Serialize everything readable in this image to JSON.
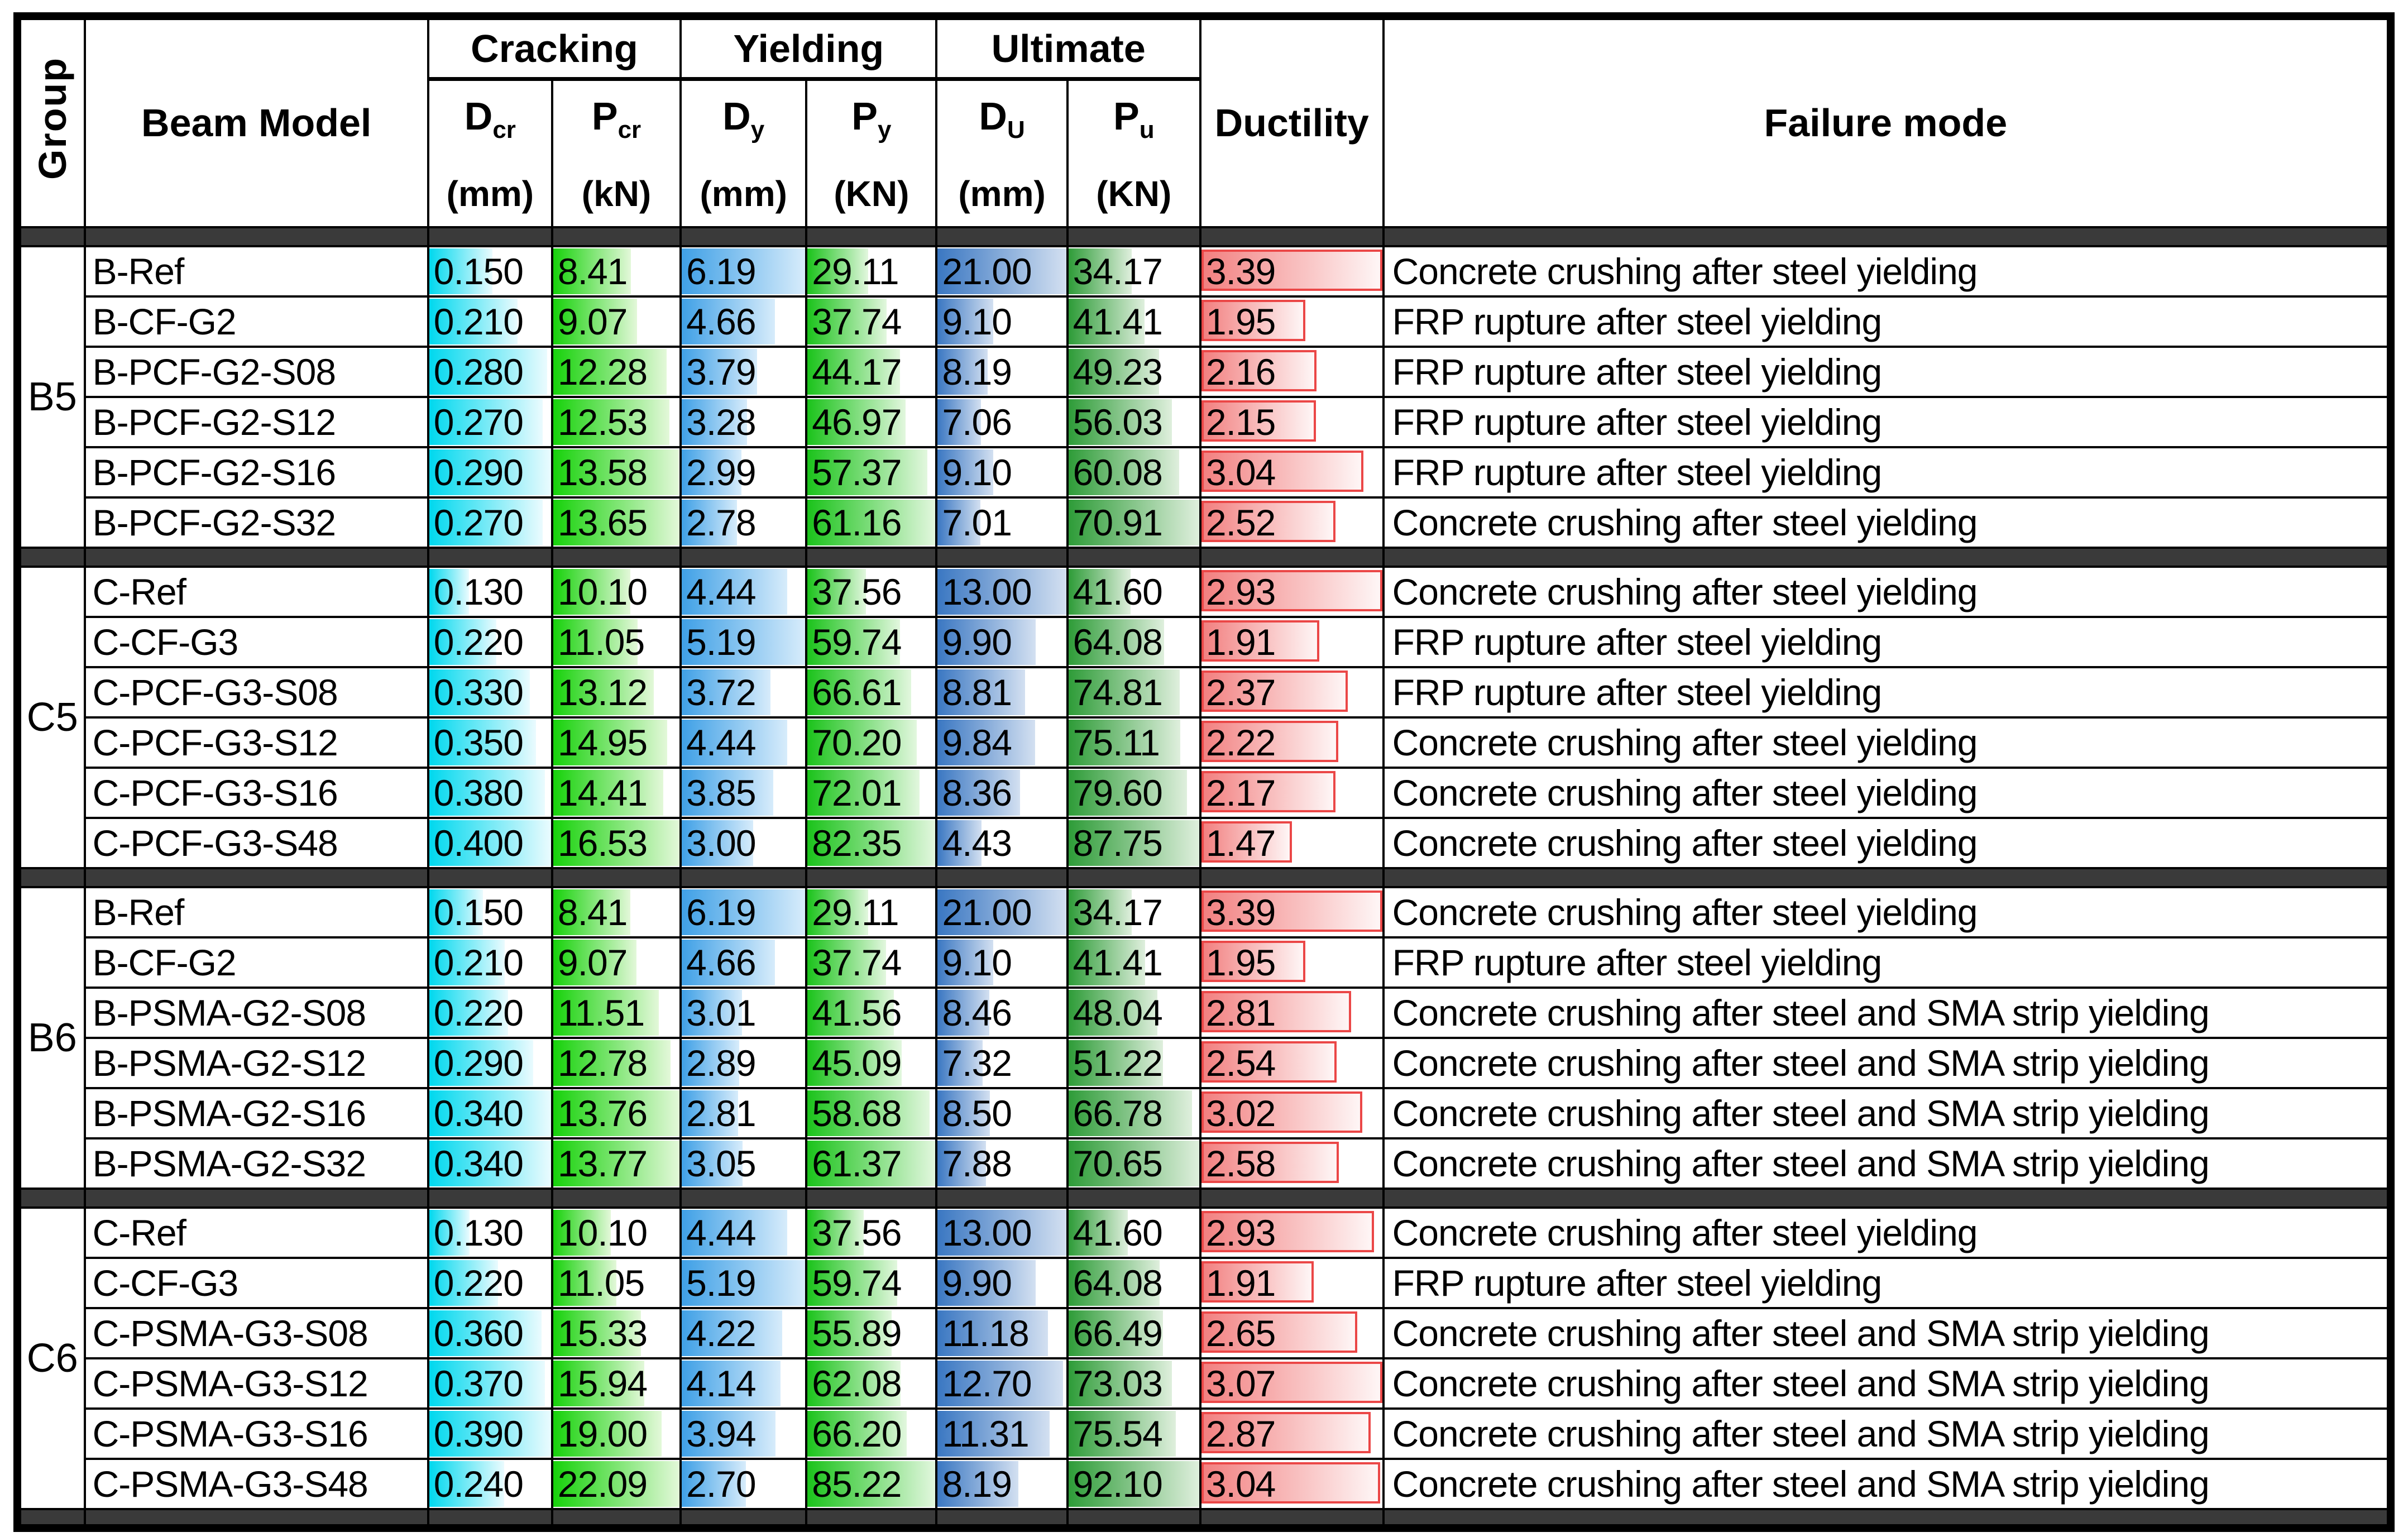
{
  "header": {
    "group": "Group",
    "beam_model": "Beam Model",
    "spans": [
      {
        "label": "Cracking"
      },
      {
        "label": "Yielding"
      },
      {
        "label": "Ultimate"
      }
    ],
    "cols": [
      {
        "sym": "D",
        "sub": "cr",
        "unit": "(mm)"
      },
      {
        "sym": "P",
        "sub": "cr",
        "unit": "(kN)"
      },
      {
        "sym": "D",
        "sub": "y",
        "unit": "(mm)"
      },
      {
        "sym": "P",
        "sub": "y",
        "unit": "(KN)"
      },
      {
        "sym": "D",
        "sub": "U",
        "unit": "(mm)"
      },
      {
        "sym": "P",
        "sub": "u",
        "unit": "(KN)"
      }
    ],
    "ductility": "Ductility",
    "failure_mode": "Failure mode"
  },
  "colors": {
    "separator": "#3a3a3a",
    "grid": "#000000",
    "bars": {
      "d_cr": {
        "from": "#00d8ee",
        "to": "#eafbfe"
      },
      "p_cr": {
        "from": "#17d20b",
        "to": "#e3f8d9"
      },
      "d_y": {
        "from": "#3fa0e6",
        "to": "#d7ecfb"
      },
      "p_y": {
        "from": "#1bc31b",
        "to": "#e2f7de"
      },
      "d_u": {
        "from": "#3a77c2",
        "to": "#d3e0f1"
      },
      "p_u": {
        "from": "#2e9c38",
        "to": "#dfefdd"
      },
      "ductility": {
        "from": "#f28080",
        "to": "#fef6f6",
        "border": "#eb4747"
      }
    }
  },
  "groups": [
    {
      "label": "B5",
      "rows": [
        {
          "model": "B-Ref",
          "d_cr": "0.150",
          "p_cr": "8.41",
          "d_y": "6.19",
          "p_y": "29.11",
          "d_u": "21.00",
          "p_u": "34.17",
          "ductility": "3.39",
          "failure": "Concrete crushing after steel yielding"
        },
        {
          "model": "B-CF-G2",
          "d_cr": "0.210",
          "p_cr": "9.07",
          "d_y": "4.66",
          "p_y": "37.74",
          "d_u": "9.10",
          "p_u": "41.41",
          "ductility": "1.95",
          "failure": "FRP rupture after steel yielding"
        },
        {
          "model": "B-PCF-G2-S08",
          "d_cr": "0.280",
          "p_cr": "12.28",
          "d_y": "3.79",
          "p_y": "44.17",
          "d_u": "8.19",
          "p_u": "49.23",
          "ductility": "2.16",
          "failure": "FRP rupture after steel yielding"
        },
        {
          "model": "B-PCF-G2-S12",
          "d_cr": "0.270",
          "p_cr": "12.53",
          "d_y": "3.28",
          "p_y": "46.97",
          "d_u": "7.06",
          "p_u": "56.03",
          "ductility": "2.15",
          "failure": "FRP rupture after steel yielding"
        },
        {
          "model": "B-PCF-G2-S16",
          "d_cr": "0.290",
          "p_cr": "13.58",
          "d_y": "2.99",
          "p_y": "57.37",
          "d_u": "9.10",
          "p_u": "60.08",
          "ductility": "3.04",
          "failure": "FRP rupture after steel yielding"
        },
        {
          "model": "B-PCF-G2-S32",
          "d_cr": "0.270",
          "p_cr": "13.65",
          "d_y": "2.78",
          "p_y": "61.16",
          "d_u": "7.01",
          "p_u": "70.91",
          "ductility": "2.52",
          "failure": "Concrete crushing after steel yielding"
        }
      ]
    },
    {
      "label": "C5",
      "rows": [
        {
          "model": "C-Ref",
          "d_cr": "0.130",
          "p_cr": "10.10",
          "d_y": "4.44",
          "p_y": "37.56",
          "d_u": "13.00",
          "p_u": "41.60",
          "ductility": "2.93",
          "failure": "Concrete crushing after steel yielding"
        },
        {
          "model": "C-CF-G3",
          "d_cr": "0.220",
          "p_cr": "11.05",
          "d_y": "5.19",
          "p_y": "59.74",
          "d_u": "9.90",
          "p_u": "64.08",
          "ductility": "1.91",
          "failure": "FRP rupture after steel yielding"
        },
        {
          "model": "C-PCF-G3-S08",
          "d_cr": "0.330",
          "p_cr": "13.12",
          "d_y": "3.72",
          "p_y": "66.61",
          "d_u": "8.81",
          "p_u": "74.81",
          "ductility": "2.37",
          "failure": "FRP rupture after steel yielding"
        },
        {
          "model": "C-PCF-G3-S12",
          "d_cr": "0.350",
          "p_cr": "14.95",
          "d_y": "4.44",
          "p_y": "70.20",
          "d_u": "9.84",
          "p_u": "75.11",
          "ductility": "2.22",
          "failure": "Concrete crushing after steel yielding"
        },
        {
          "model": "C-PCF-G3-S16",
          "d_cr": "0.380",
          "p_cr": "14.41",
          "d_y": "3.85",
          "p_y": "72.01",
          "d_u": "8.36",
          "p_u": "79.60",
          "ductility": "2.17",
          "failure": "Concrete crushing after steel yielding"
        },
        {
          "model": "C-PCF-G3-S48",
          "d_cr": "0.400",
          "p_cr": "16.53",
          "d_y": "3.00",
          "p_y": "82.35",
          "d_u": "4.43",
          "p_u": "87.75",
          "ductility": "1.47",
          "failure": "Concrete crushing after steel yielding"
        }
      ]
    },
    {
      "label": "B6",
      "rows": [
        {
          "model": "B-Ref",
          "d_cr": "0.150",
          "p_cr": "8.41",
          "d_y": "6.19",
          "p_y": "29.11",
          "d_u": "21.00",
          "p_u": "34.17",
          "ductility": "3.39",
          "failure": "Concrete crushing after steel yielding"
        },
        {
          "model": "B-CF-G2",
          "d_cr": "0.210",
          "p_cr": "9.07",
          "d_y": "4.66",
          "p_y": "37.74",
          "d_u": "9.10",
          "p_u": "41.41",
          "ductility": "1.95",
          "failure": "FRP rupture after steel yielding"
        },
        {
          "model": "B-PSMA-G2-S08",
          "d_cr": "0.220",
          "p_cr": "11.51",
          "d_y": "3.01",
          "p_y": "41.56",
          "d_u": "8.46",
          "p_u": "48.04",
          "ductility": "2.81",
          "failure": "Concrete crushing after steel and SMA strip yielding"
        },
        {
          "model": "B-PSMA-G2-S12",
          "d_cr": "0.290",
          "p_cr": "12.78",
          "d_y": "2.89",
          "p_y": "45.09",
          "d_u": "7.32",
          "p_u": "51.22",
          "ductility": "2.54",
          "failure": "Concrete crushing after steel and SMA strip yielding"
        },
        {
          "model": "B-PSMA-G2-S16",
          "d_cr": "0.340",
          "p_cr": "13.76",
          "d_y": "2.81",
          "p_y": "58.68",
          "d_u": "8.50",
          "p_u": "66.78",
          "ductility": "3.02",
          "failure": "Concrete crushing after steel and SMA strip yielding"
        },
        {
          "model": "B-PSMA-G2-S32",
          "d_cr": "0.340",
          "p_cr": "13.77",
          "d_y": "3.05",
          "p_y": "61.37",
          "d_u": "7.88",
          "p_u": "70.65",
          "ductility": "2.58",
          "failure": "Concrete crushing after steel and SMA strip yielding"
        }
      ]
    },
    {
      "label": "C6",
      "rows": [
        {
          "model": "C-Ref",
          "d_cr": "0.130",
          "p_cr": "10.10",
          "d_y": "4.44",
          "p_y": "37.56",
          "d_u": "13.00",
          "p_u": "41.60",
          "ductility": "2.93",
          "failure": "Concrete crushing after steel yielding"
        },
        {
          "model": "C-CF-G3",
          "d_cr": "0.220",
          "p_cr": "11.05",
          "d_y": "5.19",
          "p_y": "59.74",
          "d_u": "9.90",
          "p_u": "64.08",
          "ductility": "1.91",
          "failure": "FRP rupture after steel yielding"
        },
        {
          "model": "C-PSMA-G3-S08",
          "d_cr": "0.360",
          "p_cr": "15.33",
          "d_y": "4.22",
          "p_y": "55.89",
          "d_u": "11.18",
          "p_u": "66.49",
          "ductility": "2.65",
          "failure": "Concrete crushing after steel and SMA strip yielding"
        },
        {
          "model": "C-PSMA-G3-S12",
          "d_cr": "0.370",
          "p_cr": "15.94",
          "d_y": "4.14",
          "p_y": "62.08",
          "d_u": "12.70",
          "p_u": "73.03",
          "ductility": "3.07",
          "failure": "Concrete crushing after steel and SMA strip yielding"
        },
        {
          "model": "C-PSMA-G3-S16",
          "d_cr": "0.390",
          "p_cr": "19.00",
          "d_y": "3.94",
          "p_y": "66.20",
          "d_u": "11.31",
          "p_u": "75.54",
          "ductility": "2.87",
          "failure": "Concrete crushing after steel and SMA strip yielding"
        },
        {
          "model": "C-PSMA-G3-S48",
          "d_cr": "0.240",
          "p_cr": "22.09",
          "d_y": "2.70",
          "p_y": "85.22",
          "d_u": "8.19",
          "p_u": "92.10",
          "ductility": "3.04",
          "failure": "Concrete crushing after steel and SMA strip yielding"
        }
      ]
    }
  ]
}
